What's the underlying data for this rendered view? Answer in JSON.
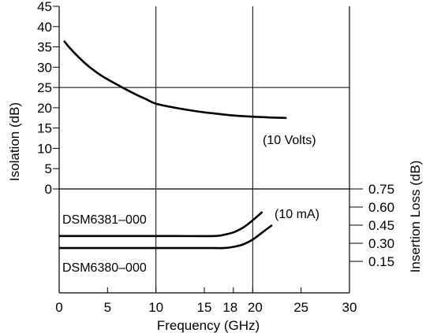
{
  "chart_data": {
    "type": "line",
    "xlabel": "Frequency (GHz)",
    "ylabel_left": "Isolation (dB)",
    "ylabel_right": "Insertion Loss (dB)",
    "xlim": [
      0,
      30
    ],
    "ylim_left": [
      0,
      45
    ],
    "ylim_right": [
      0,
      0.75
    ],
    "grid": true,
    "x_ticks": [
      {
        "value": 0,
        "label": "0"
      },
      {
        "value": 5,
        "label": "5"
      },
      {
        "value": 10,
        "label": "10"
      },
      {
        "value": 15,
        "label": "15"
      },
      {
        "value": 18,
        "label": "18"
      },
      {
        "value": 20,
        "label": "20"
      },
      {
        "value": 25,
        "label": "25"
      },
      {
        "value": 30,
        "label": "30"
      }
    ],
    "y_ticks_left": [
      {
        "value": 0,
        "label": "0"
      },
      {
        "value": 5,
        "label": "5"
      },
      {
        "value": 10,
        "label": "10"
      },
      {
        "value": 15,
        "label": "15"
      },
      {
        "value": 20,
        "label": "20"
      },
      {
        "value": 25,
        "label": "25"
      },
      {
        "value": 30,
        "label": "30"
      },
      {
        "value": 35,
        "label": "35"
      },
      {
        "value": 40,
        "label": "40"
      },
      {
        "value": 45,
        "label": "45"
      }
    ],
    "y_ticks_right": [
      {
        "value": 0.75,
        "label": "0.75"
      },
      {
        "value": 0.6,
        "label": "0.60"
      },
      {
        "value": 0.45,
        "label": "0.45"
      },
      {
        "value": 0.3,
        "label": "0.30"
      },
      {
        "value": 0.15,
        "label": "0.15"
      }
    ],
    "annotations": {
      "isolation_condition": "(10 Volts)",
      "loss_condition": "(10 mA)",
      "model_upper": "DSM6381–000",
      "model_lower": "DSM6380–000"
    },
    "series": [
      {
        "axis": "left",
        "x": [
          0.5,
          1,
          2,
          3,
          4,
          5,
          6,
          7,
          8,
          9,
          10,
          12,
          14,
          16,
          18,
          20,
          22,
          23.5
        ],
        "y": [
          36.5,
          35.0,
          32.5,
          30.3,
          28.5,
          27.0,
          25.7,
          24.4,
          23.2,
          22.1,
          21.0,
          20.0,
          19.2,
          18.6,
          18.1,
          17.8,
          17.6,
          17.5
        ]
      },
      {
        "axis": "right",
        "x": [
          0,
          4,
          8,
          12,
          16,
          17,
          18,
          19,
          20,
          21
        ],
        "y": [
          0.36,
          0.36,
          0.36,
          0.36,
          0.36,
          0.37,
          0.39,
          0.43,
          0.49,
          0.56
        ]
      },
      {
        "axis": "right",
        "x": [
          0,
          4,
          8,
          12,
          16,
          17,
          18,
          19,
          20,
          21,
          22
        ],
        "y": [
          0.26,
          0.26,
          0.26,
          0.26,
          0.26,
          0.26,
          0.27,
          0.29,
          0.33,
          0.39,
          0.45
        ]
      }
    ]
  }
}
